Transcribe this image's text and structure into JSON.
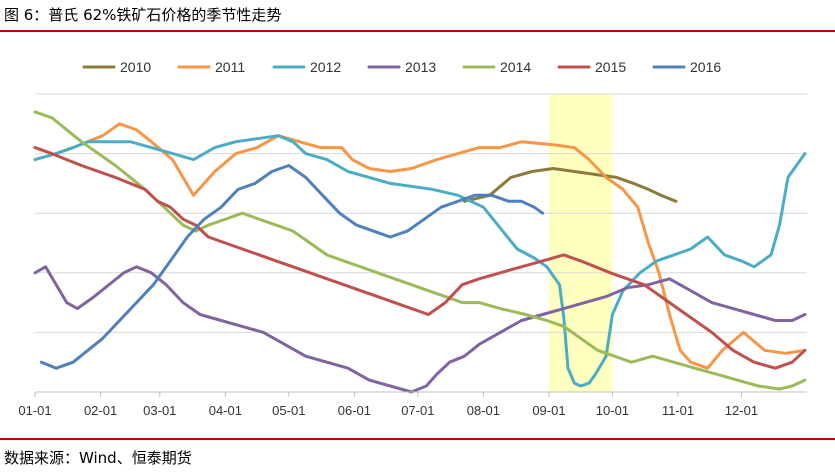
{
  "figure": {
    "title": "图 6：普氏 62%铁矿石价格的季节性走势",
    "source": "数据来源：Wind、恒泰期货"
  },
  "chart_data": {
    "type": "line",
    "xlabel": "",
    "ylabel": "",
    "x_ticks": [
      "01-01",
      "02-01",
      "03-01",
      "04-01",
      "05-01",
      "06-01",
      "07-01",
      "08-01",
      "09-01",
      "10-01",
      "11-01",
      "12-01"
    ],
    "x_range_days": [
      0,
      365
    ],
    "y_axis_labels_shown": false,
    "y_gridlines": 5,
    "y_range": [
      0,
      100
    ],
    "legend_position": "top",
    "highlight_band": {
      "from": "09-01",
      "to": "10-01",
      "color": "#ffffc0"
    },
    "series": [
      {
        "name": "2010",
        "color": "#8b7a3a",
        "points": [
          [
            203,
            64
          ],
          [
            215,
            66
          ],
          [
            225,
            72
          ],
          [
            235,
            74
          ],
          [
            245,
            75
          ],
          [
            255,
            74
          ],
          [
            265,
            73
          ],
          [
            275,
            72
          ],
          [
            283,
            70
          ],
          [
            290,
            68
          ],
          [
            296,
            66
          ],
          [
            303,
            64
          ]
        ]
      },
      {
        "name": "2011",
        "color": "#f79646",
        "points": [
          [
            0,
            78
          ],
          [
            10,
            80
          ],
          [
            18,
            82
          ],
          [
            25,
            84
          ],
          [
            32,
            86
          ],
          [
            40,
            90
          ],
          [
            48,
            88
          ],
          [
            55,
            84
          ],
          [
            65,
            78
          ],
          [
            75,
            66
          ],
          [
            85,
            74
          ],
          [
            95,
            80
          ],
          [
            105,
            82
          ],
          [
            115,
            86
          ],
          [
            125,
            84
          ],
          [
            135,
            82
          ],
          [
            145,
            82
          ],
          [
            150,
            78
          ],
          [
            158,
            75
          ],
          [
            168,
            74
          ],
          [
            178,
            75
          ],
          [
            190,
            78
          ],
          [
            200,
            80
          ],
          [
            210,
            82
          ],
          [
            220,
            82
          ],
          [
            230,
            84
          ],
          [
            245,
            83
          ],
          [
            255,
            82
          ],
          [
            262,
            78
          ],
          [
            270,
            72
          ],
          [
            278,
            68
          ],
          [
            285,
            62
          ],
          [
            290,
            50
          ],
          [
            295,
            40
          ],
          [
            300,
            26
          ],
          [
            305,
            14
          ],
          [
            310,
            10
          ],
          [
            318,
            8
          ],
          [
            325,
            14
          ],
          [
            335,
            20
          ],
          [
            345,
            14
          ],
          [
            355,
            13
          ],
          [
            364,
            14
          ]
        ]
      },
      {
        "name": "2012",
        "color": "#4bacc6",
        "points": [
          [
            0,
            78
          ],
          [
            10,
            80
          ],
          [
            18,
            82
          ],
          [
            25,
            84
          ],
          [
            35,
            84
          ],
          [
            45,
            84
          ],
          [
            55,
            82
          ],
          [
            65,
            80
          ],
          [
            75,
            78
          ],
          [
            85,
            82
          ],
          [
            95,
            84
          ],
          [
            105,
            85
          ],
          [
            115,
            86
          ],
          [
            122,
            84
          ],
          [
            128,
            80
          ],
          [
            138,
            78
          ],
          [
            148,
            74
          ],
          [
            158,
            72
          ],
          [
            168,
            70
          ],
          [
            178,
            69
          ],
          [
            188,
            68
          ],
          [
            200,
            66
          ],
          [
            212,
            62
          ],
          [
            220,
            55
          ],
          [
            228,
            48
          ],
          [
            236,
            45
          ],
          [
            242,
            42
          ],
          [
            248,
            36
          ],
          [
            250,
            25
          ],
          [
            252,
            8
          ],
          [
            255,
            3
          ],
          [
            258,
            2
          ],
          [
            262,
            3
          ],
          [
            265,
            6
          ],
          [
            270,
            12
          ],
          [
            273,
            26
          ],
          [
            278,
            34
          ],
          [
            286,
            40
          ],
          [
            294,
            44
          ],
          [
            302,
            46
          ],
          [
            310,
            48
          ],
          [
            318,
            52
          ],
          [
            326,
            46
          ],
          [
            334,
            44
          ],
          [
            340,
            42
          ],
          [
            348,
            46
          ],
          [
            352,
            56
          ],
          [
            356,
            72
          ],
          [
            360,
            76
          ],
          [
            364,
            80
          ]
        ]
      },
      {
        "name": "2013",
        "color": "#8064a2",
        "points": [
          [
            0,
            40
          ],
          [
            5,
            42
          ],
          [
            10,
            36
          ],
          [
            15,
            30
          ],
          [
            20,
            28
          ],
          [
            28,
            32
          ],
          [
            35,
            36
          ],
          [
            42,
            40
          ],
          [
            48,
            42
          ],
          [
            55,
            40
          ],
          [
            62,
            36
          ],
          [
            70,
            30
          ],
          [
            78,
            26
          ],
          [
            88,
            24
          ],
          [
            98,
            22
          ],
          [
            108,
            20
          ],
          [
            118,
            16
          ],
          [
            128,
            12
          ],
          [
            138,
            10
          ],
          [
            148,
            8
          ],
          [
            158,
            4
          ],
          [
            168,
            2
          ],
          [
            178,
            0
          ],
          [
            185,
            2
          ],
          [
            190,
            6
          ],
          [
            196,
            10
          ],
          [
            203,
            12
          ],
          [
            210,
            16
          ],
          [
            220,
            20
          ],
          [
            230,
            24
          ],
          [
            240,
            26
          ],
          [
            250,
            28
          ],
          [
            260,
            30
          ],
          [
            270,
            32
          ],
          [
            280,
            35
          ],
          [
            290,
            36
          ],
          [
            300,
            38
          ],
          [
            310,
            34
          ],
          [
            320,
            30
          ],
          [
            330,
            28
          ],
          [
            340,
            26
          ],
          [
            350,
            24
          ],
          [
            358,
            24
          ],
          [
            364,
            26
          ]
        ]
      },
      {
        "name": "2014",
        "color": "#9bbb59",
        "points": [
          [
            0,
            94
          ],
          [
            8,
            92
          ],
          [
            15,
            88
          ],
          [
            22,
            84
          ],
          [
            30,
            80
          ],
          [
            38,
            76
          ],
          [
            45,
            72
          ],
          [
            52,
            68
          ],
          [
            58,
            64
          ],
          [
            64,
            60
          ],
          [
            70,
            56
          ],
          [
            76,
            54
          ],
          [
            82,
            56
          ],
          [
            90,
            58
          ],
          [
            98,
            60
          ],
          [
            106,
            58
          ],
          [
            114,
            56
          ],
          [
            122,
            54
          ],
          [
            130,
            50
          ],
          [
            138,
            46
          ],
          [
            146,
            44
          ],
          [
            154,
            42
          ],
          [
            162,
            40
          ],
          [
            170,
            38
          ],
          [
            178,
            36
          ],
          [
            186,
            34
          ],
          [
            194,
            32
          ],
          [
            202,
            30
          ],
          [
            210,
            30
          ],
          [
            220,
            28
          ],
          [
            232,
            26
          ],
          [
            242,
            24
          ],
          [
            250,
            22
          ],
          [
            258,
            18
          ],
          [
            266,
            14
          ],
          [
            274,
            12
          ],
          [
            282,
            10
          ],
          [
            292,
            12
          ],
          [
            302,
            10
          ],
          [
            312,
            8
          ],
          [
            322,
            6
          ],
          [
            332,
            4
          ],
          [
            342,
            2
          ],
          [
            352,
            1
          ],
          [
            358,
            2
          ],
          [
            364,
            4
          ]
        ]
      },
      {
        "name": "2015",
        "color": "#c0504d",
        "points": [
          [
            0,
            82
          ],
          [
            8,
            80
          ],
          [
            15,
            78
          ],
          [
            22,
            76
          ],
          [
            30,
            74
          ],
          [
            38,
            72
          ],
          [
            45,
            70
          ],
          [
            52,
            68
          ],
          [
            58,
            64
          ],
          [
            64,
            62
          ],
          [
            70,
            58
          ],
          [
            76,
            56
          ],
          [
            82,
            52
          ],
          [
            90,
            50
          ],
          [
            98,
            48
          ],
          [
            106,
            46
          ],
          [
            114,
            44
          ],
          [
            122,
            42
          ],
          [
            130,
            40
          ],
          [
            138,
            38
          ],
          [
            146,
            36
          ],
          [
            154,
            34
          ],
          [
            162,
            32
          ],
          [
            170,
            30
          ],
          [
            178,
            28
          ],
          [
            186,
            26
          ],
          [
            194,
            30
          ],
          [
            202,
            36
          ],
          [
            210,
            38
          ],
          [
            220,
            40
          ],
          [
            230,
            42
          ],
          [
            240,
            44
          ],
          [
            250,
            46
          ],
          [
            258,
            44
          ],
          [
            265,
            42
          ],
          [
            272,
            40
          ],
          [
            280,
            38
          ],
          [
            288,
            36
          ],
          [
            296,
            32
          ],
          [
            304,
            28
          ],
          [
            312,
            24
          ],
          [
            320,
            20
          ],
          [
            330,
            14
          ],
          [
            340,
            10
          ],
          [
            350,
            8
          ],
          [
            358,
            10
          ],
          [
            364,
            14
          ]
        ]
      },
      {
        "name": "2016",
        "color": "#4f81bd",
        "points": [
          [
            3,
            10
          ],
          [
            10,
            8
          ],
          [
            18,
            10
          ],
          [
            25,
            14
          ],
          [
            32,
            18
          ],
          [
            40,
            24
          ],
          [
            48,
            30
          ],
          [
            56,
            36
          ],
          [
            64,
            44
          ],
          [
            72,
            52
          ],
          [
            80,
            58
          ],
          [
            88,
            62
          ],
          [
            96,
            68
          ],
          [
            104,
            70
          ],
          [
            112,
            74
          ],
          [
            120,
            76
          ],
          [
            128,
            72
          ],
          [
            136,
            66
          ],
          [
            144,
            60
          ],
          [
            152,
            56
          ],
          [
            160,
            54
          ],
          [
            168,
            52
          ],
          [
            176,
            54
          ],
          [
            184,
            58
          ],
          [
            192,
            62
          ],
          [
            200,
            64
          ],
          [
            208,
            66
          ],
          [
            216,
            66
          ],
          [
            224,
            64
          ],
          [
            230,
            64
          ],
          [
            236,
            62
          ],
          [
            240,
            60
          ]
        ]
      }
    ]
  }
}
